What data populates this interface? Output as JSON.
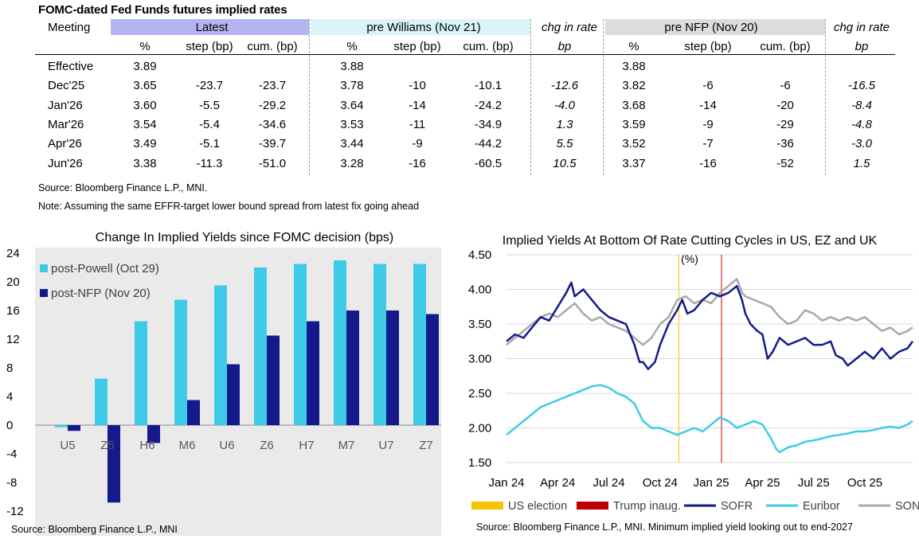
{
  "table": {
    "title": "FOMC-dated Fed Funds futures implied rates",
    "meeting_label": "Meeting",
    "group_headers": [
      "Latest",
      "pre Williams (Nov 21)",
      "chg in rate",
      "pre NFP (Nov 20)",
      "chg in rate"
    ],
    "sub_headers": [
      "%",
      "step (bp)",
      "cum. (bp)",
      "%",
      "step (bp)",
      "cum. (bp)",
      "bp",
      "%",
      "step (bp)",
      "cum. (bp)",
      "bp"
    ],
    "colors": {
      "latest": "#b4b4f0",
      "pre_williams": "#d9f3fb",
      "pre_nfp": "#dcdcdc"
    },
    "rows": [
      [
        "Effective",
        "3.89",
        "",
        "",
        "3.88",
        "",
        "",
        "",
        "3.88",
        "",
        "",
        ""
      ],
      [
        "Dec'25",
        "3.65",
        "-23.7",
        "-23.7",
        "3.78",
        "-10",
        "-10.1",
        "-12.6",
        "3.82",
        "-6",
        "-6",
        "-16.5"
      ],
      [
        "Jan'26",
        "3.60",
        "-5.5",
        "-29.2",
        "3.64",
        "-14",
        "-24.2",
        "-4.0",
        "3.68",
        "-14",
        "-20",
        "-8.4"
      ],
      [
        "Mar'26",
        "3.54",
        "-5.4",
        "-34.6",
        "3.53",
        "-11",
        "-34.9",
        "1.3",
        "3.59",
        "-9",
        "-29",
        "-4.8"
      ],
      [
        "Apr'26",
        "3.49",
        "-5.1",
        "-39.7",
        "3.44",
        "-9",
        "-44.2",
        "5.5",
        "3.52",
        "-7",
        "-36",
        "-3.0"
      ],
      [
        "Jun'26",
        "3.38",
        "-11.3",
        "-51.0",
        "3.28",
        "-16",
        "-60.5",
        "10.5",
        "3.37",
        "-16",
        "-52",
        "1.5"
      ]
    ],
    "source": "Source: Bloomberg Finance L.P., MNI.",
    "note": "Note: Assuming the same  EFFR-target lower bound spread from latest fix going ahead"
  },
  "chart_data": [
    {
      "type": "bar",
      "title": "Change In Implied Yields since FOMC decision (bps)",
      "categories": [
        "U5",
        "Z5",
        "H6",
        "M6",
        "U6",
        "Z6",
        "H7",
        "M7",
        "U7",
        "Z7"
      ],
      "ylim": [
        -12,
        24
      ],
      "yticks": [
        -12,
        -8,
        -4,
        0,
        4,
        8,
        12,
        16,
        20,
        24
      ],
      "series": [
        {
          "name": "post-Powell (Oct 29)",
          "color": "#3ecbe8",
          "values": [
            -0.3,
            6.5,
            14.5,
            17.5,
            19.5,
            22,
            22.5,
            23,
            22.5,
            22.5
          ]
        },
        {
          "name": "post-NFP (Nov 20)",
          "color": "#141a8c",
          "values": [
            -0.8,
            -10.8,
            -2.5,
            3.5,
            8.5,
            12.5,
            14.5,
            16,
            16,
            15.5
          ]
        }
      ],
      "source": "Source: Bloomberg Finance L.P., MNI"
    },
    {
      "type": "line",
      "title": "Implied Yields At Bottom Of Rate Cutting Cycles in US, EZ and UK",
      "subtitle": "(%)",
      "ylim": [
        1.5,
        4.5
      ],
      "yticks": [
        "1.50",
        "2.00",
        "2.50",
        "3.00",
        "3.50",
        "4.00",
        "4.50"
      ],
      "xlim": [
        0,
        23.8
      ],
      "xticks": [
        {
          "label": "Jan 24",
          "x": 0
        },
        {
          "label": "Apr 24",
          "x": 3
        },
        {
          "label": "Jul 24",
          "x": 6
        },
        {
          "label": "Oct 24",
          "x": 9
        },
        {
          "label": "Jan 25",
          "x": 12
        },
        {
          "label": "Apr 25",
          "x": 15
        },
        {
          "label": "Jul 25",
          "x": 18
        },
        {
          "label": "Oct 25",
          "x": 21
        }
      ],
      "events": [
        {
          "name": "US election",
          "x": 10.1,
          "color": "#f5c400"
        },
        {
          "name": "Trump inaug.",
          "x": 12.6,
          "color": "#c00000"
        }
      ],
      "series": [
        {
          "name": "SOFR",
          "color": "#141a8c",
          "points": [
            [
              0,
              3.25
            ],
            [
              0.5,
              3.35
            ],
            [
              1,
              3.3
            ],
            [
              1.5,
              3.45
            ],
            [
              2,
              3.6
            ],
            [
              2.5,
              3.55
            ],
            [
              3,
              3.75
            ],
            [
              3.5,
              3.95
            ],
            [
              3.8,
              4.1
            ],
            [
              4,
              3.9
            ],
            [
              4.5,
              4.0
            ],
            [
              5,
              3.85
            ],
            [
              5.5,
              3.7
            ],
            [
              6,
              3.6
            ],
            [
              6.5,
              3.55
            ],
            [
              7,
              3.5
            ],
            [
              7.5,
              3.2
            ],
            [
              7.8,
              2.95
            ],
            [
              8,
              2.95
            ],
            [
              8.3,
              2.85
            ],
            [
              8.7,
              2.95
            ],
            [
              9,
              3.2
            ],
            [
              9.5,
              3.5
            ],
            [
              10,
              3.7
            ],
            [
              10.3,
              3.85
            ],
            [
              10.6,
              3.65
            ],
            [
              11,
              3.7
            ],
            [
              11.5,
              3.85
            ],
            [
              12,
              3.95
            ],
            [
              12.5,
              3.9
            ],
            [
              13,
              3.95
            ],
            [
              13.5,
              4.05
            ],
            [
              13.8,
              3.85
            ],
            [
              14,
              3.65
            ],
            [
              14.3,
              3.5
            ],
            [
              14.7,
              3.4
            ],
            [
              15,
              3.35
            ],
            [
              15.3,
              3.0
            ],
            [
              15.6,
              3.1
            ],
            [
              16,
              3.3
            ],
            [
              16.5,
              3.2
            ],
            [
              17,
              3.25
            ],
            [
              17.5,
              3.3
            ],
            [
              18,
              3.2
            ],
            [
              18.5,
              3.2
            ],
            [
              19,
              3.25
            ],
            [
              19.3,
              3.05
            ],
            [
              19.7,
              3.0
            ],
            [
              20,
              2.9
            ],
            [
              20.5,
              3.0
            ],
            [
              21,
              3.1
            ],
            [
              21.5,
              3.0
            ],
            [
              22,
              3.15
            ],
            [
              22.5,
              3.0
            ],
            [
              23,
              3.1
            ],
            [
              23.5,
              3.15
            ],
            [
              23.8,
              3.25
            ]
          ]
        },
        {
          "name": "Euribor",
          "color": "#3ecbe8",
          "points": [
            [
              0,
              1.9
            ],
            [
              0.5,
              2.0
            ],
            [
              1,
              2.1
            ],
            [
              1.5,
              2.2
            ],
            [
              2,
              2.3
            ],
            [
              2.5,
              2.35
            ],
            [
              3,
              2.4
            ],
            [
              3.5,
              2.45
            ],
            [
              4,
              2.5
            ],
            [
              4.5,
              2.55
            ],
            [
              5,
              2.6
            ],
            [
              5.5,
              2.62
            ],
            [
              6,
              2.58
            ],
            [
              6.5,
              2.5
            ],
            [
              7,
              2.45
            ],
            [
              7.5,
              2.35
            ],
            [
              7.8,
              2.2
            ],
            [
              8,
              2.1
            ],
            [
              8.5,
              2.0
            ],
            [
              9,
              2.0
            ],
            [
              9.5,
              1.95
            ],
            [
              10,
              1.9
            ],
            [
              10.5,
              1.95
            ],
            [
              11,
              2.0
            ],
            [
              11.5,
              1.95
            ],
            [
              12,
              2.05
            ],
            [
              12.5,
              2.15
            ],
            [
              13,
              2.1
            ],
            [
              13.5,
              2.0
            ],
            [
              14,
              2.05
            ],
            [
              14.5,
              2.1
            ],
            [
              15,
              2.05
            ],
            [
              15.5,
              1.85
            ],
            [
              15.8,
              1.7
            ],
            [
              16,
              1.65
            ],
            [
              16.5,
              1.72
            ],
            [
              17,
              1.75
            ],
            [
              17.5,
              1.8
            ],
            [
              18,
              1.82
            ],
            [
              18.5,
              1.85
            ],
            [
              19,
              1.88
            ],
            [
              19.5,
              1.9
            ],
            [
              20,
              1.92
            ],
            [
              20.5,
              1.95
            ],
            [
              21,
              1.95
            ],
            [
              21.5,
              1.97
            ],
            [
              22,
              2.0
            ],
            [
              22.5,
              2.02
            ],
            [
              23,
              2.0
            ],
            [
              23.5,
              2.05
            ],
            [
              23.8,
              2.1
            ]
          ]
        },
        {
          "name": "SONIA",
          "color": "#a9a9a9",
          "points": [
            [
              0,
              3.2
            ],
            [
              0.5,
              3.3
            ],
            [
              1,
              3.4
            ],
            [
              1.5,
              3.5
            ],
            [
              2,
              3.6
            ],
            [
              2.5,
              3.65
            ],
            [
              3,
              3.6
            ],
            [
              3.5,
              3.7
            ],
            [
              4,
              3.8
            ],
            [
              4.5,
              3.65
            ],
            [
              5,
              3.55
            ],
            [
              5.5,
              3.6
            ],
            [
              6,
              3.5
            ],
            [
              6.5,
              3.45
            ],
            [
              7,
              3.4
            ],
            [
              7.5,
              3.3
            ],
            [
              8,
              3.2
            ],
            [
              8.5,
              3.3
            ],
            [
              9,
              3.5
            ],
            [
              9.5,
              3.6
            ],
            [
              10,
              3.85
            ],
            [
              10.5,
              3.9
            ],
            [
              11,
              3.8
            ],
            [
              11.5,
              3.85
            ],
            [
              12,
              3.8
            ],
            [
              12.5,
              3.95
            ],
            [
              13,
              4.05
            ],
            [
              13.5,
              4.15
            ],
            [
              13.8,
              3.95
            ],
            [
              14,
              3.9
            ],
            [
              14.5,
              3.85
            ],
            [
              15,
              3.8
            ],
            [
              15.5,
              3.75
            ],
            [
              16,
              3.6
            ],
            [
              16.5,
              3.5
            ],
            [
              17,
              3.55
            ],
            [
              17.5,
              3.7
            ],
            [
              18,
              3.65
            ],
            [
              18.5,
              3.55
            ],
            [
              19,
              3.6
            ],
            [
              19.5,
              3.55
            ],
            [
              20,
              3.6
            ],
            [
              20.5,
              3.55
            ],
            [
              21,
              3.6
            ],
            [
              21.5,
              3.5
            ],
            [
              22,
              3.4
            ],
            [
              22.5,
              3.45
            ],
            [
              23,
              3.35
            ],
            [
              23.5,
              3.4
            ],
            [
              23.8,
              3.45
            ]
          ]
        }
      ],
      "source": "Source: Bloomberg Finance L.P., MNI. Minimum implied yield looking out to end-2027"
    }
  ]
}
